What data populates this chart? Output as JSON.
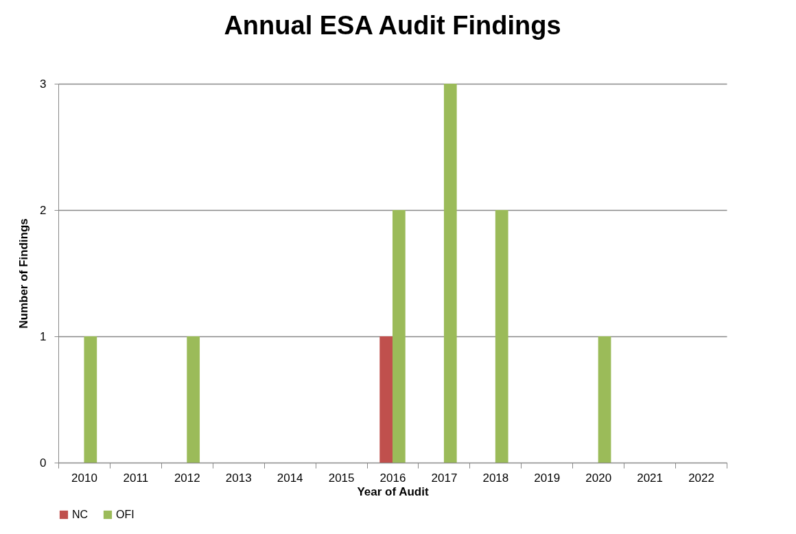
{
  "chart_data": {
    "type": "bar",
    "title": "Annual ESA Audit Findings",
    "xlabel": "Year of Audit",
    "ylabel": "Number of Findings",
    "categories": [
      "2010",
      "2011",
      "2012",
      "2013",
      "2014",
      "2015",
      "2016",
      "2017",
      "2018",
      "2019",
      "2020",
      "2021",
      "2022"
    ],
    "series": [
      {
        "name": "NC",
        "color": "#c0504d",
        "values": [
          0,
          0,
          0,
          0,
          0,
          0,
          1,
          0,
          0,
          0,
          0,
          0,
          0
        ]
      },
      {
        "name": "OFI",
        "color": "#9bbb59",
        "values": [
          1,
          0,
          1,
          0,
          0,
          0,
          2,
          3,
          2,
          0,
          1,
          0,
          0
        ]
      }
    ],
    "ylim": [
      0,
      3
    ],
    "yticks": [
      0,
      1,
      2,
      3
    ],
    "grid": "y",
    "legend": "bottom"
  }
}
